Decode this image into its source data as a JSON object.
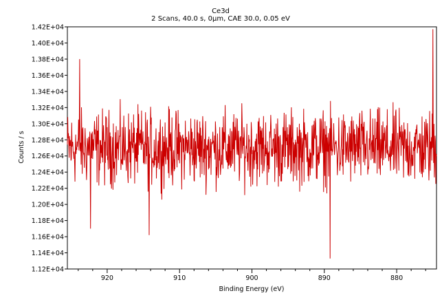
{
  "chart_data": {
    "type": "line",
    "title": "Ce3d",
    "subtitle": "2 Scans,  40.0 s,  0µm,  CAE 30.0,  0.05 eV",
    "xlabel": "Binding Energy (eV)",
    "ylabel": "Counts / s",
    "x_reversed": true,
    "xlim": [
      925.5,
      874.5
    ],
    "ylim": [
      11200,
      14200
    ],
    "x_ticks": [
      920,
      910,
      900,
      890,
      880
    ],
    "x_tick_labels": [
      "920",
      "910",
      "900",
      "890",
      "880"
    ],
    "y_ticks": [
      11200,
      11400,
      11600,
      11800,
      12000,
      12200,
      12400,
      12600,
      12800,
      13000,
      13200,
      13400,
      13600,
      13800,
      14000,
      14200
    ],
    "y_tick_labels": [
      "1.12E+04",
      "1.14E+04",
      "1.16E+04",
      "1.18E+04",
      "1.20E+04",
      "1.22E+04",
      "1.24E+04",
      "1.26E+04",
      "1.28E+04",
      "1.30E+04",
      "1.32E+04",
      "1.34E+04",
      "1.36E+04",
      "1.38E+04",
      "1.40E+04",
      "1.42E+04"
    ],
    "grid": false,
    "legend": "none",
    "series": [
      {
        "color": "#cc0000",
        "x_start": 925.5,
        "x_step": -0.05,
        "baseline": 12700,
        "noise_amplitude": 600,
        "notable_points": [
          {
            "x": 923.8,
            "y": 13800
          },
          {
            "x": 922.3,
            "y": 11700
          },
          {
            "x": 914.2,
            "y": 11620
          },
          {
            "x": 889.2,
            "y": 11330
          },
          {
            "x": 875.0,
            "y": 14170
          }
        ]
      }
    ]
  }
}
